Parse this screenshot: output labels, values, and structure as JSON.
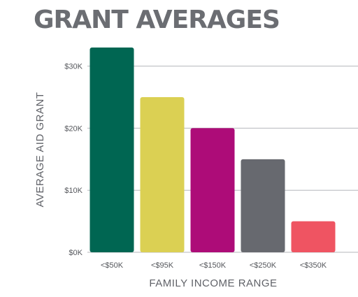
{
  "chart_data": {
    "type": "bar",
    "title": "GRANT AVERAGES",
    "xlabel": "FAMILY INCOME RANGE",
    "ylabel": "AVERAGE AID GRANT",
    "categories": [
      "<$50K",
      "<$95K",
      "<$150K",
      "<$250K",
      "<$350K"
    ],
    "values": [
      33000,
      25000,
      20000,
      15000,
      5000
    ],
    "colors": [
      "#006652",
      "#dbd053",
      "#ad0c78",
      "#67696f",
      "#ef5462"
    ],
    "ylim": [
      0,
      33000
    ],
    "yticks": [
      0,
      10000,
      20000,
      30000
    ],
    "ytick_labels": [
      "$0K",
      "$10K",
      "$20K",
      "$30K"
    ],
    "grid": true,
    "legend": "none"
  }
}
